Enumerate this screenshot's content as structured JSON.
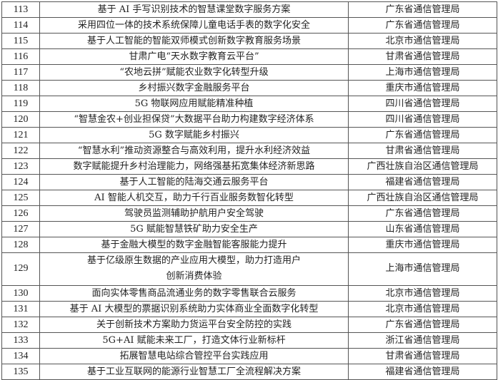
{
  "rows": [
    {
      "no": "113",
      "title": "基于 AI 手写识别技术的智慧课堂数字服务方案",
      "unit": "广东省通信管理局"
    },
    {
      "no": "114",
      "title": "采用四位一体的技术系统保障儿童电话手表的数字化安全",
      "unit": "广东省通信管理局"
    },
    {
      "no": "115",
      "title": "基于人工智能的智能双师模式创新数字教育服务场景",
      "unit": "北京市通信管理局"
    },
    {
      "no": "116",
      "title": "甘肃广电“天水数字教育云平台”",
      "unit": "甘肃省通信管理局"
    },
    {
      "no": "117",
      "title": "“农地云拼”赋能农业数字化转型升级",
      "unit": "上海市通信管理局"
    },
    {
      "no": "118",
      "title": "乡村振兴数字金融服务平台",
      "unit": "重庆市通信管理局"
    },
    {
      "no": "119",
      "title": "5G 物联网应用赋能精准种植",
      "unit": "四川省通信管理局"
    },
    {
      "no": "120",
      "title": "“智慧金农+创业担保贷”大数据平台助力构建数字经济体系",
      "unit": "四川省通信管理局"
    },
    {
      "no": "121",
      "title": "5G 数字赋能乡村振兴",
      "unit": "广东省通信管理局"
    },
    {
      "no": "122",
      "title": "“智慧水利”推动资源整合与高效利用，提升水利经济效益",
      "unit": "甘肃省通信管理局"
    },
    {
      "no": "123",
      "title": "数字赋能提升乡村治理能力，网络强基拓宽集体经济新思路",
      "unit": "广西壮族自治区通信管理局"
    },
    {
      "no": "124",
      "title": "基于人工智能的陆海交通云服务平台",
      "unit": "福建省通信管理局"
    },
    {
      "no": "125",
      "title": "AI 智能人机交互，助力千行百业服务数智化转型",
      "unit": "广西壮族自治区通信管理局"
    },
    {
      "no": "126",
      "title": "驾驶员监测辅助护航用户安全驾驶",
      "unit": "广东省通信管理局"
    },
    {
      "no": "127",
      "title": "5G 赋能智慧铁矿助力安全生产",
      "unit": "山东省通信管理局"
    },
    {
      "no": "128",
      "title": "基于金融大模型的数字金融智能客服能力提升",
      "unit": "重庆市通信管理局"
    },
    {
      "no": "129",
      "title": "基于亿级原生数据的产业应用大模型，助力打造用户创新消费体验",
      "unit": "上海市通信管理局"
    },
    {
      "no": "130",
      "title": "面向实体零售商品流通业务的数字零售联合云服务",
      "unit": "北京市通信管理局"
    },
    {
      "no": "131",
      "title": "基于 AI 大模型的票据识别系统助力实体商业全面数字化转型",
      "unit": "北京市通信管理局"
    },
    {
      "no": "132",
      "title": "关于创新技术方案助力货运平台安全防控的实践",
      "unit": "广东省通信管理局"
    },
    {
      "no": "133",
      "title": "5G+AI 赋能未来工厂，打造文体行业新标杆",
      "unit": "浙江省通信管理局"
    },
    {
      "no": "134",
      "title": "拓展智慧电站综合管控平台实践应用",
      "unit": "甘肃省通信管理局"
    },
    {
      "no": "135",
      "title": "基于工业互联网的能源行业智慧工厂全流程解决方案",
      "unit": "福建省通信管理局"
    }
  ]
}
